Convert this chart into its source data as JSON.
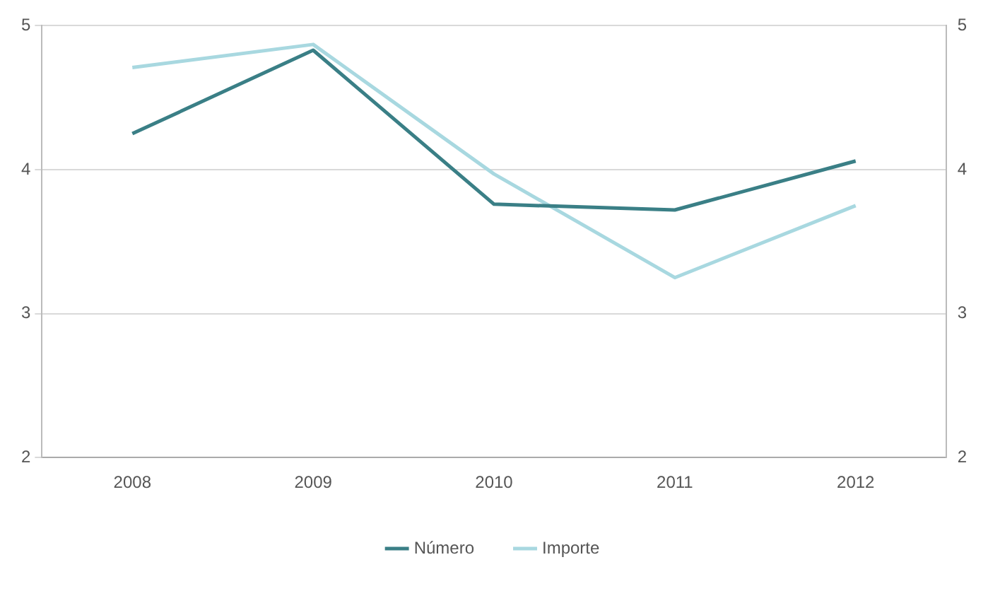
{
  "chart_data": {
    "type": "line",
    "categories": [
      "2008",
      "2009",
      "2010",
      "2011",
      "2012"
    ],
    "series": [
      {
        "name": "Número",
        "color": "#3a7f86",
        "values": [
          4.25,
          4.83,
          3.76,
          3.72,
          4.06
        ]
      },
      {
        "name": "Importe",
        "color": "#a8d8e0",
        "values": [
          4.71,
          4.87,
          3.97,
          3.25,
          3.75
        ]
      }
    ],
    "ylim": [
      2,
      5
    ],
    "yticks": [
      2,
      3,
      4,
      5
    ],
    "y2lim": [
      2,
      5
    ],
    "y2ticks": [
      2,
      3,
      4,
      5
    ],
    "grid": "y",
    "legend": "bottom",
    "marker": "none",
    "line_style": "solid"
  }
}
